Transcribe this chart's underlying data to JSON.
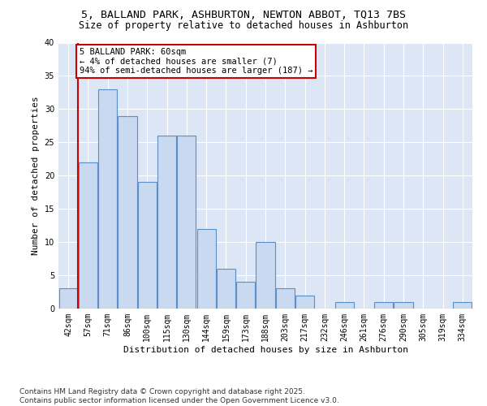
{
  "title_line1": "5, BALLAND PARK, ASHBURTON, NEWTON ABBOT, TQ13 7BS",
  "title_line2": "Size of property relative to detached houses in Ashburton",
  "xlabel": "Distribution of detached houses by size in Ashburton",
  "ylabel": "Number of detached properties",
  "categories": [
    "42sqm",
    "57sqm",
    "71sqm",
    "86sqm",
    "100sqm",
    "115sqm",
    "130sqm",
    "144sqm",
    "159sqm",
    "173sqm",
    "188sqm",
    "203sqm",
    "217sqm",
    "232sqm",
    "246sqm",
    "261sqm",
    "276sqm",
    "290sqm",
    "305sqm",
    "319sqm",
    "334sqm"
  ],
  "values": [
    3,
    22,
    33,
    29,
    19,
    26,
    26,
    12,
    6,
    4,
    10,
    3,
    2,
    0,
    1,
    0,
    1,
    1,
    0,
    0,
    1
  ],
  "bar_color": "#c9d9f0",
  "bar_edge_color": "#5b8fc9",
  "highlight_bar_index": 1,
  "highlight_line_color": "#cc0000",
  "annotation_text": "5 BALLAND PARK: 60sqm\n← 4% of detached houses are smaller (7)\n94% of semi-detached houses are larger (187) →",
  "annotation_box_color": "#ffffff",
  "annotation_box_edge_color": "#cc0000",
  "ylim": [
    0,
    40
  ],
  "yticks": [
    0,
    5,
    10,
    15,
    20,
    25,
    30,
    35,
    40
  ],
  "grid_color": "#ffffff",
  "plot_bg_color": "#dce6f5",
  "footer_text": "Contains HM Land Registry data © Crown copyright and database right 2025.\nContains public sector information licensed under the Open Government Licence v3.0.",
  "title_fontsize": 9.5,
  "subtitle_fontsize": 8.5,
  "axis_label_fontsize": 8,
  "tick_fontsize": 7,
  "annotation_fontsize": 7.5,
  "footer_fontsize": 6.5
}
